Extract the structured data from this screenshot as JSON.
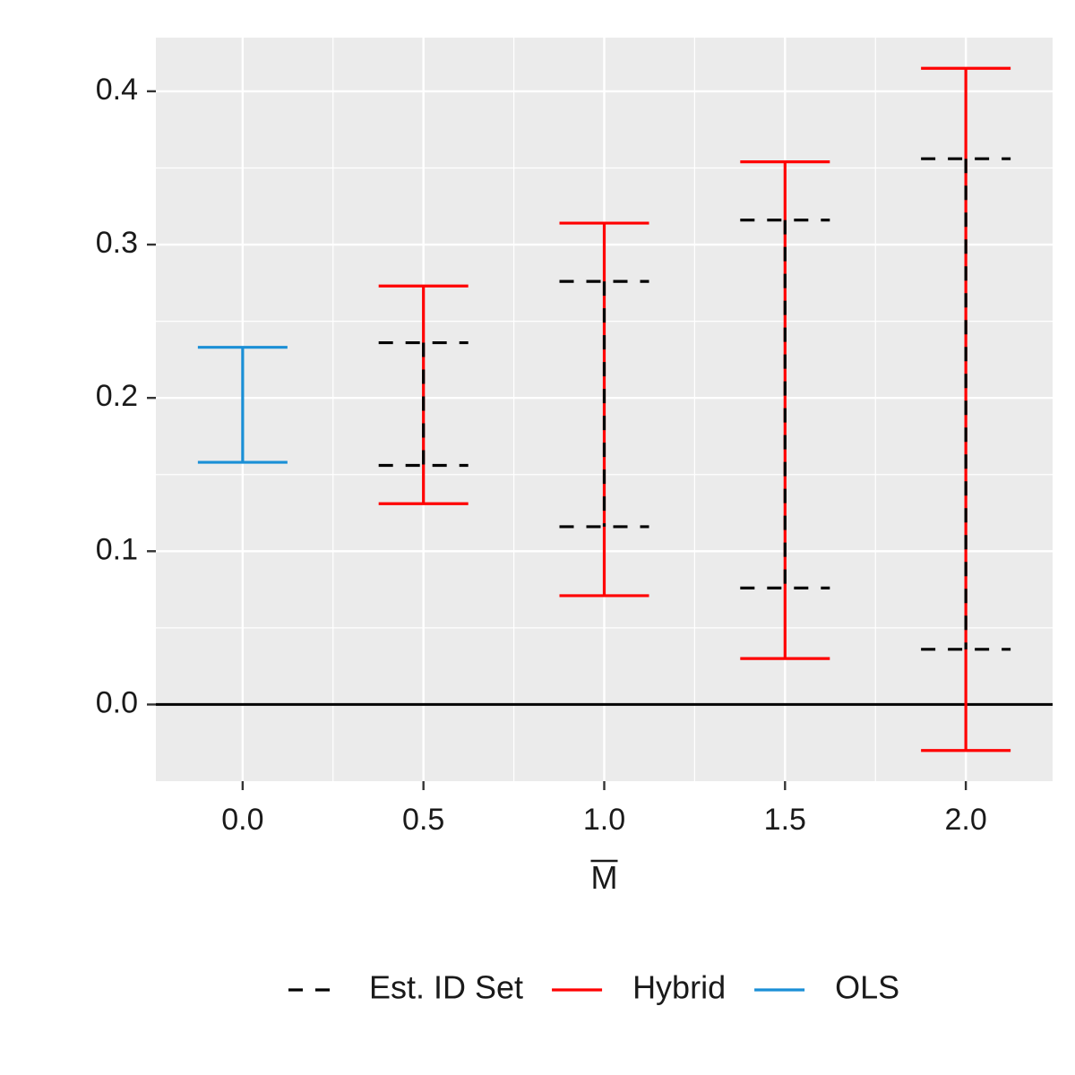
{
  "chart_data": {
    "type": "errorbar",
    "xlabel": "M",
    "xlabel_overline": true,
    "ylabel": "",
    "title": "",
    "xlim": [
      -0.24,
      2.24
    ],
    "ylim": [
      -0.05,
      0.435
    ],
    "x_ticks": [
      0.0,
      0.5,
      1.0,
      1.5,
      2.0
    ],
    "x_tick_labels": [
      "0.0",
      "0.5",
      "1.0",
      "1.5",
      "2.0"
    ],
    "y_ticks": [
      0.0,
      0.1,
      0.2,
      0.3,
      0.4
    ],
    "y_tick_labels": [
      "0.0",
      "0.1",
      "0.2",
      "0.3",
      "0.4"
    ],
    "grid": true,
    "reference_line_y": 0.0,
    "legend_position": "bottom",
    "series": [
      {
        "name": "Est. ID Set",
        "style": "dashed",
        "color": "#000000",
        "points": [
          {
            "x": 0.5,
            "lower": 0.156,
            "upper": 0.236
          },
          {
            "x": 1.0,
            "lower": 0.116,
            "upper": 0.276
          },
          {
            "x": 1.5,
            "lower": 0.076,
            "upper": 0.316
          },
          {
            "x": 2.0,
            "lower": 0.036,
            "upper": 0.356
          }
        ]
      },
      {
        "name": "Hybrid",
        "style": "solid",
        "color": "#ff0000",
        "points": [
          {
            "x": 0.5,
            "lower": 0.131,
            "upper": 0.273
          },
          {
            "x": 1.0,
            "lower": 0.071,
            "upper": 0.314
          },
          {
            "x": 1.5,
            "lower": 0.03,
            "upper": 0.354
          },
          {
            "x": 2.0,
            "lower": -0.03,
            "upper": 0.415
          }
        ]
      },
      {
        "name": "OLS",
        "style": "solid",
        "color": "#1a8fd6",
        "points": [
          {
            "x": 0.0,
            "lower": 0.158,
            "upper": 0.233
          }
        ]
      }
    ]
  }
}
